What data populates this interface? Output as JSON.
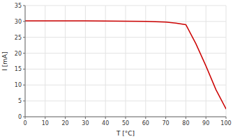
{
  "chart_data": {
    "type": "line",
    "x": [
      0,
      10,
      20,
      30,
      40,
      50,
      60,
      70,
      75,
      80,
      85,
      90,
      95,
      100
    ],
    "values": [
      30.2,
      30.2,
      30.2,
      30.2,
      30.15,
      30.1,
      30.0,
      29.8,
      29.5,
      29.0,
      23.0,
      16.0,
      8.5,
      2.5
    ],
    "color": "#cc0000",
    "x_label": "T [°C]",
    "y_label": "I [mA]",
    "xlim": [
      0,
      100
    ],
    "ylim": [
      0,
      35
    ],
    "xticks": [
      0,
      10,
      20,
      30,
      40,
      50,
      60,
      70,
      80,
      90,
      100
    ],
    "yticks": [
      0,
      5,
      10,
      15,
      20,
      25,
      30,
      35
    ],
    "grid": true
  }
}
